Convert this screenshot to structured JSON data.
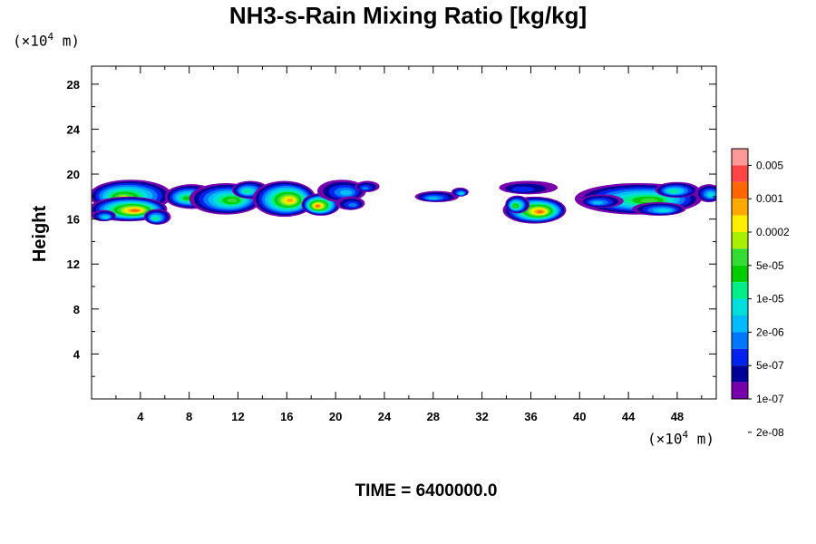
{
  "title": "NH3-s-Rain Mixing Ratio [kg/kg]",
  "footer": "TIME = 6400000.0",
  "units": {
    "y_prefix": "(×10",
    "y_exp": "4",
    "y_suffix": " m)",
    "x_prefix": "(×10",
    "x_exp": "4",
    "x_suffix": " m)"
  },
  "chart_data": {
    "type": "heatmap",
    "title": "NH3-s-Rain Mixing Ratio [kg/kg]",
    "xlabel": "",
    "ylabel": "Height",
    "x_unit": "(×10^4 m)",
    "y_unit": "(×10^4 m)",
    "xlim": [
      0,
      51.2
    ],
    "ylim": [
      0,
      29.6
    ],
    "x_ticks": [
      4,
      8,
      12,
      16,
      20,
      24,
      28,
      32,
      36,
      40,
      44,
      48
    ],
    "y_ticks": [
      4,
      8,
      12,
      16,
      20,
      24,
      28
    ],
    "colorbar": {
      "labels": [
        "0.005",
        "0.001",
        "0.0002",
        "5e-05",
        "1e-05",
        "2e-06",
        "5e-07",
        "1e-07",
        "2e-08"
      ],
      "colors": [
        "#ff9999",
        "#ff4444",
        "#ff6600",
        "#ffaa00",
        "#ffee00",
        "#aaee00",
        "#33dd33",
        "#00cc00",
        "#00ee88",
        "#00dddd",
        "#00bbff",
        "#0077ff",
        "#0022ee",
        "#000099",
        "#7700aa"
      ]
    },
    "cloud_regions": [
      {
        "x": [
          0,
          6.5
        ],
        "y": [
          15.5,
          19.5
        ],
        "peak": "0.001"
      },
      {
        "x": [
          6.5,
          23.5
        ],
        "y": [
          16.5,
          19.5
        ],
        "peak": "0.001"
      },
      {
        "x": [
          26.5,
          31
        ],
        "y": [
          17.5,
          18.8
        ],
        "peak": "5e-07"
      },
      {
        "x": [
          33.5,
          39.5
        ],
        "y": [
          15.5,
          19.3
        ],
        "peak": "0.001"
      },
      {
        "x": [
          39.5,
          51.2
        ],
        "y": [
          16,
          19.3
        ],
        "peak": "1e-05"
      }
    ]
  }
}
